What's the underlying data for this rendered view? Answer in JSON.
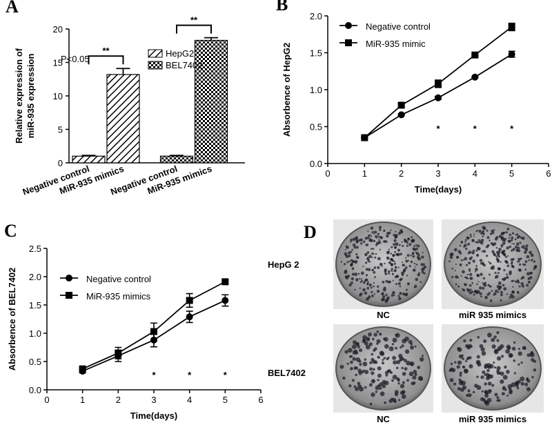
{
  "chart_data": [
    {
      "type": "bar",
      "panel_label": "A",
      "y_label": [
        "Relative expression of",
        "miR-935 expression"
      ],
      "categories": [
        "Negative control",
        "MiR-935 mimics"
      ],
      "series": [
        {
          "name": "HepG2",
          "color": "#000000",
          "pattern": "hatch",
          "values": [
            1,
            13.2
          ],
          "errors": [
            0.1,
            0.9
          ],
          "significance": "**"
        },
        {
          "name": "BEL7402",
          "color": "#000000",
          "pattern": "check",
          "values": [
            1,
            18.3
          ],
          "errors": [
            0.1,
            0.4
          ],
          "significance": "**"
        }
      ],
      "annotation": "P<0.05",
      "ylim": [
        0,
        20
      ],
      "yticks": [
        0,
        5,
        10,
        15,
        20
      ]
    },
    {
      "type": "line",
      "panel_label": "B",
      "x_label": "Time(days)",
      "y_label": "Absorbence of HepG2",
      "x": [
        1,
        2,
        3,
        4,
        5
      ],
      "series": [
        {
          "name": "Negative control",
          "color": "#000000",
          "marker": "circle",
          "values": [
            0.35,
            0.66,
            0.89,
            1.17,
            1.48
          ],
          "errors": [
            0.01,
            0.01,
            0.02,
            0.01,
            0.04
          ]
        },
        {
          "name": "MiR-935 mimic",
          "color": "#000000",
          "marker": "square",
          "values": [
            0.35,
            0.79,
            1.08,
            1.47,
            1.85
          ],
          "errors": [
            0.01,
            0.02,
            0.05,
            0.01,
            0.05
          ]
        }
      ],
      "significance": [
        {
          "x": 3,
          "label": "*"
        },
        {
          "x": 4,
          "label": "*"
        },
        {
          "x": 5,
          "label": "*"
        }
      ],
      "xlim": [
        0,
        6
      ],
      "xticks": [
        0,
        1,
        2,
        3,
        4,
        5,
        6
      ],
      "ylim": [
        0,
        2.0
      ],
      "yticks": [
        {
          "value": 0,
          "label": "0.0"
        },
        0.5,
        {
          "value": 1,
          "label": "1.0"
        },
        1.5,
        {
          "value": 2,
          "label": "2.0"
        }
      ]
    },
    {
      "type": "line",
      "panel_label": "C",
      "x_label": "Time(days)",
      "y_label": "Absorbence of  BEL7402",
      "x": [
        1,
        2,
        3,
        4,
        5
      ],
      "series": [
        {
          "name": "Negative control",
          "color": "#000000",
          "marker": "circle",
          "values": [
            0.33,
            0.6,
            0.88,
            1.29,
            1.58
          ],
          "errors": [
            0.03,
            0.1,
            0.12,
            0.1,
            0.1
          ]
        },
        {
          "name": "MiR-935 mimics",
          "color": "#000000",
          "marker": "square",
          "values": [
            0.37,
            0.65,
            1.03,
            1.58,
            1.91
          ],
          "errors": [
            0.02,
            0.1,
            0.15,
            0.12,
            0.02
          ]
        }
      ],
      "significance": [
        {
          "x": 3,
          "label": "*"
        },
        {
          "x": 4,
          "label": "*"
        },
        {
          "x": 5,
          "label": "*"
        }
      ],
      "xlim": [
        0,
        6
      ],
      "xticks": [
        0,
        1,
        2,
        3,
        4,
        5,
        6
      ],
      "ylim": [
        0,
        2.5
      ],
      "yticks": [
        {
          "value": 0,
          "label": "0.0"
        },
        0.5,
        {
          "value": 1,
          "label": "1.0"
        },
        1.5,
        {
          "value": 2,
          "label": "2.0"
        },
        2.5
      ]
    }
  ],
  "image_panel": {
    "panel_label": "D",
    "rows": [
      {
        "name": "HepG 2",
        "columns": [
          "NC",
          "miR 935 mimics"
        ]
      },
      {
        "name": "BEL7402",
        "columns": [
          "NC",
          "miR 935 mimics"
        ]
      }
    ]
  }
}
